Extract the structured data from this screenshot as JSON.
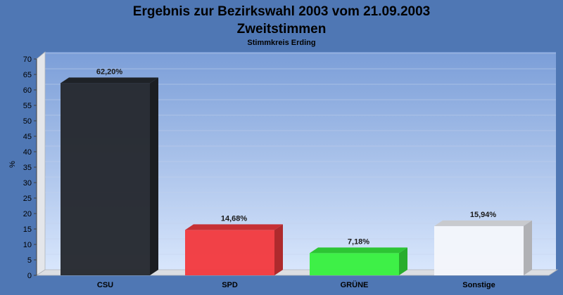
{
  "chart_data": {
    "type": "bar",
    "title": "Ergebnis zur Bezirkswahl 2003 vom 21.09.2003",
    "title_line2": "Zweitstimmen",
    "subtitle": "Stimmkreis Erding",
    "xlabel": "",
    "ylabel": "%",
    "ylim": [
      0,
      70
    ],
    "yticks": [
      "0",
      "5",
      "10",
      "15",
      "20",
      "25",
      "30",
      "35",
      "40",
      "45",
      "50",
      "55",
      "60",
      "65",
      "70"
    ],
    "categories": [
      "CSU",
      "SPD",
      "GRÜNE",
      "Sonstige"
    ],
    "values": [
      62.2,
      14.68,
      7.18,
      15.94
    ],
    "data_labels": [
      "62,20%",
      "14,68%",
      "7,18%",
      "15,94%"
    ],
    "colors": [
      "#25292f",
      "#f23a3f",
      "#37f03f",
      "#f4f6fb"
    ],
    "grid": true,
    "legend": "none"
  }
}
